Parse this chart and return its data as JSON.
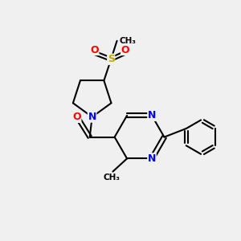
{
  "bg_color": "#f0f0f0",
  "bond_color": "#000000",
  "bond_width": 1.5,
  "atom_colors": {
    "N": "#0000ff",
    "O": "#ff0000",
    "S": "#bbaa00",
    "C": "#000000"
  },
  "font_size_atom": 9,
  "font_size_small": 7.5
}
